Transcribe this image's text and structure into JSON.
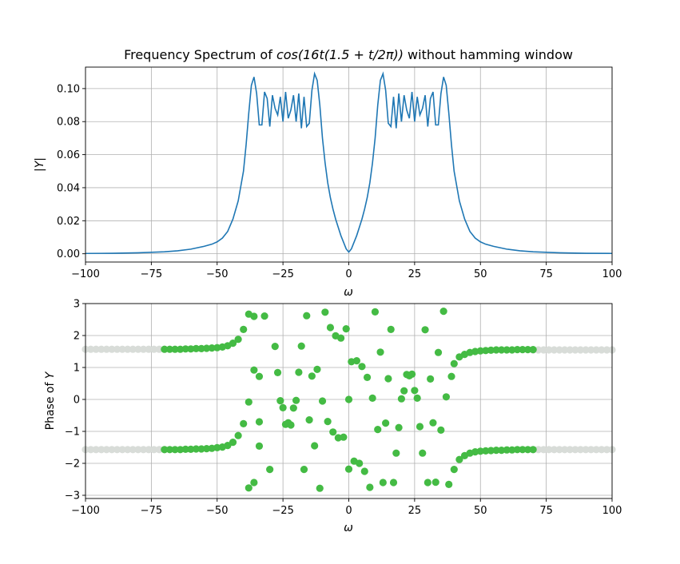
{
  "chart_data": [
    {
      "type": "line",
      "title_prefix": "Frequency Spectrum of ",
      "title_formula": "cos(16t(1.5 + t/2π))",
      "title_suffix": " without hamming window",
      "xlabel": "ω",
      "ylabel": "|Y|",
      "xlim": [
        -100,
        100
      ],
      "ylim": [
        -0.005,
        0.113
      ],
      "xticks": [
        -100,
        -75,
        -50,
        -25,
        0,
        25,
        50,
        75,
        100
      ],
      "yticks": [
        0.0,
        0.02,
        0.04,
        0.06,
        0.08,
        0.1
      ],
      "ytick_labels": [
        "0.00",
        "0.02",
        "0.04",
        "0.06",
        "0.08",
        "0.10"
      ],
      "grid": true,
      "series": [
        {
          "color": "#1f77b4",
          "x": [
            -100,
            -90,
            -80,
            -70,
            -65,
            -60,
            -55,
            -52,
            -50,
            -48,
            -46,
            -44,
            -42,
            -40,
            -39,
            -38,
            -37,
            -36,
            -35,
            -34,
            -33,
            -32,
            -31,
            -30,
            -29,
            -28,
            -27,
            -26,
            -25,
            -24,
            -23,
            -22,
            -21,
            -20,
            -19,
            -18,
            -17,
            -16,
            -15,
            -14,
            -13,
            -12,
            -11,
            -10,
            -9,
            -8,
            -7,
            -6,
            -5,
            -4,
            -3,
            -2,
            -1,
            0,
            1,
            2,
            3,
            4,
            5,
            6,
            7,
            8,
            9,
            10,
            11,
            12,
            13,
            14,
            15,
            16,
            17,
            18,
            19,
            20,
            21,
            22,
            23,
            24,
            25,
            26,
            27,
            28,
            29,
            30,
            31,
            32,
            33,
            34,
            35,
            36,
            37,
            38,
            39,
            40,
            42,
            44,
            46,
            48,
            50,
            52,
            55,
            60,
            65,
            70,
            80,
            90,
            100
          ],
          "y": [
            0.0002,
            0.0003,
            0.0006,
            0.0012,
            0.0018,
            0.0028,
            0.0045,
            0.0058,
            0.0072,
            0.0095,
            0.0135,
            0.021,
            0.032,
            0.05,
            0.066,
            0.085,
            0.102,
            0.107,
            0.097,
            0.078,
            0.078,
            0.098,
            0.094,
            0.077,
            0.096,
            0.088,
            0.084,
            0.095,
            0.08,
            0.098,
            0.082,
            0.087,
            0.096,
            0.08,
            0.097,
            0.076,
            0.095,
            0.077,
            0.079,
            0.099,
            0.109,
            0.105,
            0.09,
            0.07,
            0.055,
            0.043,
            0.034,
            0.027,
            0.021,
            0.016,
            0.011,
            0.007,
            0.003,
            0.001,
            0.003,
            0.007,
            0.011,
            0.016,
            0.021,
            0.027,
            0.034,
            0.043,
            0.055,
            0.07,
            0.09,
            0.105,
            0.109,
            0.099,
            0.079,
            0.077,
            0.095,
            0.076,
            0.097,
            0.08,
            0.096,
            0.087,
            0.082,
            0.098,
            0.08,
            0.095,
            0.084,
            0.088,
            0.096,
            0.077,
            0.094,
            0.098,
            0.078,
            0.078,
            0.097,
            0.107,
            0.102,
            0.085,
            0.066,
            0.05,
            0.032,
            0.021,
            0.0135,
            0.0095,
            0.0072,
            0.0058,
            0.0045,
            0.0028,
            0.0018,
            0.0012,
            0.0006,
            0.0003,
            0.0002
          ]
        }
      ]
    },
    {
      "type": "scatter",
      "xlabel": "ω",
      "ylabel_prefix": "Phase of ",
      "ylabel_var": "Y",
      "xlim": [
        -100,
        100
      ],
      "ylim": [
        -3.1,
        3.0
      ],
      "xticks": [
        -100,
        -75,
        -50,
        -25,
        0,
        25,
        50,
        75,
        100
      ],
      "yticks": [
        -3,
        -2,
        -1,
        0,
        1,
        2,
        3
      ],
      "ytick_labels": [
        "−3",
        "−2",
        "−1",
        "0",
        "1",
        "2",
        "3"
      ],
      "grid": true,
      "series": [
        {
          "color": "#d8dcd8",
          "note": "background phase for negligible magnitude",
          "x": [
            -100,
            -98,
            -96,
            -94,
            -92,
            -90,
            -88,
            -86,
            -84,
            -82,
            -80,
            -78,
            -76,
            -74,
            -72,
            -70,
            70,
            72,
            74,
            76,
            78,
            80,
            82,
            84,
            86,
            88,
            90,
            92,
            94,
            96,
            98,
            100
          ],
          "y_top": [
            1.57,
            1.57,
            1.57,
            1.57,
            1.57,
            1.57,
            1.57,
            1.57,
            1.57,
            1.57,
            1.57,
            1.57,
            1.57,
            1.57,
            1.57,
            1.57,
            1.55,
            1.55,
            1.55,
            1.55,
            1.55,
            1.55,
            1.55,
            1.55,
            1.55,
            1.55,
            1.55,
            1.55,
            1.55,
            1.55,
            1.55,
            1.55
          ],
          "y_bottom": [
            -1.57,
            -1.57,
            -1.57,
            -1.57,
            -1.57,
            -1.57,
            -1.57,
            -1.57,
            -1.57,
            -1.57,
            -1.57,
            -1.57,
            -1.57,
            -1.57,
            -1.57,
            -1.57,
            -1.57,
            -1.57,
            -1.57,
            -1.57,
            -1.57,
            -1.57,
            -1.57,
            -1.57,
            -1.57,
            -1.57,
            -1.57,
            -1.57,
            -1.57,
            -1.57,
            -1.57,
            -1.57
          ]
        },
        {
          "color": "#44bb44",
          "x": [
            -70,
            -68,
            -66,
            -64,
            -62,
            -60,
            -58,
            -56,
            -54,
            -52,
            -50,
            -48,
            -46,
            -44,
            -42,
            -40,
            -38,
            -36,
            -34,
            -70,
            -68,
            -66,
            -64,
            -62,
            -60,
            -58,
            -56,
            -54,
            -52,
            -50,
            -48,
            -46,
            -44,
            -42,
            -40,
            -38,
            -36,
            -34,
            -38,
            -36,
            -34,
            -32,
            -30,
            -28,
            -27,
            -26,
            -25,
            -24,
            -23,
            -22,
            -21,
            -20,
            -19,
            -18,
            -17,
            -16,
            -15,
            -14,
            -13,
            -12,
            -11,
            -10,
            -9,
            -8,
            -7,
            -6,
            -5,
            -4,
            -3,
            -2,
            -1,
            0,
            0,
            1,
            2,
            3,
            4,
            5,
            6,
            7,
            8,
            9,
            10,
            11,
            12,
            13,
            14,
            15,
            16,
            17,
            18,
            19,
            20,
            21,
            22,
            23,
            24,
            25,
            26,
            27,
            28,
            29,
            30,
            31,
            32,
            33,
            34,
            35,
            36,
            37,
            38,
            39,
            40,
            42,
            44,
            46,
            48,
            50,
            52,
            54,
            56,
            58,
            60,
            62,
            64,
            66,
            68,
            70,
            40,
            42,
            44,
            46,
            48,
            50,
            52,
            54,
            56,
            58,
            60,
            62,
            64,
            66,
            68,
            70
          ],
          "y": [
            1.57,
            1.57,
            1.57,
            1.57,
            1.58,
            1.58,
            1.59,
            1.59,
            1.6,
            1.61,
            1.62,
            1.64,
            1.68,
            1.76,
            1.88,
            2.19,
            2.67,
            2.6,
            0.72,
            -1.57,
            -1.57,
            -1.57,
            -1.57,
            -1.56,
            -1.56,
            -1.55,
            -1.55,
            -1.54,
            -1.53,
            -1.51,
            -1.49,
            -1.44,
            -1.34,
            -1.13,
            -0.76,
            -0.08,
            0.92,
            -1.46,
            -2.77,
            -2.6,
            -0.7,
            2.61,
            -2.19,
            1.66,
            0.84,
            -0.04,
            -0.26,
            -0.78,
            -0.73,
            -0.8,
            -0.27,
            -0.03,
            0.85,
            1.67,
            -2.19,
            2.62,
            -0.64,
            0.73,
            -1.45,
            0.94,
            -2.78,
            -0.05,
            2.73,
            -0.69,
            2.25,
            -1.02,
            1.99,
            -1.2,
            1.92,
            -1.18,
            2.21,
            0.0,
            -2.18,
            1.18,
            -1.93,
            1.21,
            -2.0,
            1.03,
            -2.25,
            0.69,
            -2.75,
            0.04,
            2.74,
            -0.94,
            1.48,
            -2.6,
            -0.74,
            0.65,
            2.19,
            -2.6,
            -1.68,
            -0.88,
            0.02,
            0.27,
            0.78,
            0.74,
            0.79,
            0.28,
            0.04,
            -0.85,
            -1.68,
            2.18,
            -2.6,
            0.64,
            -0.73,
            -2.59,
            1.47,
            -0.96,
            2.76,
            0.08,
            -2.66,
            0.72,
            1.12,
            1.33,
            1.41,
            1.47,
            1.5,
            1.52,
            1.53,
            1.54,
            1.55,
            1.55,
            1.55,
            1.55,
            1.56,
            1.56,
            1.56,
            1.56,
            -2.19,
            -1.88,
            -1.76,
            -1.68,
            -1.64,
            -1.62,
            -1.61,
            -1.6,
            -1.59,
            -1.59,
            -1.58,
            -1.58,
            -1.57,
            -1.57,
            -1.57,
            -1.57
          ]
        }
      ]
    }
  ]
}
